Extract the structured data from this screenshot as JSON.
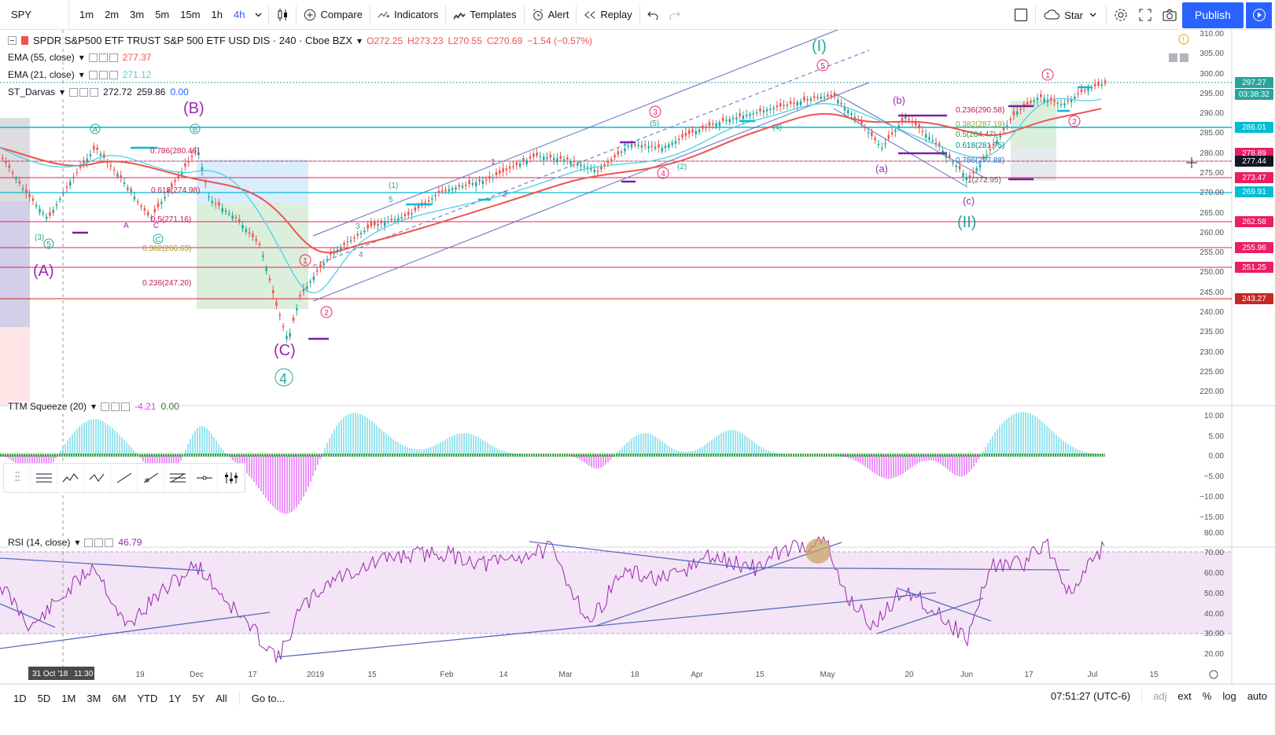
{
  "toolbar": {
    "symbol": "SPY",
    "intervals": [
      "1m",
      "2m",
      "3m",
      "5m",
      "15m",
      "1h",
      "4h"
    ],
    "active_interval": "4h",
    "compare_label": "Compare",
    "indicators_label": "Indicators",
    "templates_label": "Templates",
    "alert_label": "Alert",
    "replay_label": "Replay",
    "star_label": "Star",
    "publish_label": "Publish"
  },
  "main_legend": {
    "title": "SPDR S&P500 ETF TRUST S&P 500 ETF USD DIS · 240 · Cboe BZX",
    "open": "O272.25",
    "high": "H273.23",
    "low": "L270.55",
    "close": "C270.69",
    "change": "−1.54 (−0.57%)"
  },
  "indicators": [
    {
      "name": "EMA (55, close)",
      "value": "277.37",
      "color": "#ef5350"
    },
    {
      "name": "EMA (21, close)",
      "value": "271.12",
      "color": "#4dd0e1"
    },
    {
      "name": "ST_Darvas",
      "value1": "272.72",
      "value2": "259.86",
      "value3": "0.00"
    }
  ],
  "ttm_legend": {
    "name": "TTM Squeeze (20)",
    "value1": "-4.21",
    "value2": "0.00"
  },
  "rsi_legend": {
    "name": "RSI (14, close)",
    "value": "46.79"
  },
  "price_axis": {
    "ticks": [
      "310.00",
      "305.00",
      "300.00",
      "295.00",
      "290.00",
      "285.00",
      "280.00",
      "275.00",
      "270.00",
      "265.00",
      "260.00",
      "255.00",
      "250.00",
      "245.00",
      "240.00",
      "235.00",
      "230.00",
      "225.00",
      "220.00"
    ],
    "tags": [
      {
        "label": "297.27",
        "color": "#26a69a"
      },
      {
        "label": "03:38:32",
        "color": "#26a69a"
      },
      {
        "label": "286.01",
        "color": "#00bcd4"
      },
      {
        "label": "278.89",
        "color": "#e91e63"
      },
      {
        "label": "277.44",
        "color": "#131722"
      },
      {
        "label": "273.47",
        "color": "#e91e63"
      },
      {
        "label": "269.91",
        "color": "#00bcd4"
      },
      {
        "label": "262.58",
        "color": "#e91e63"
      },
      {
        "label": "255.96",
        "color": "#e91e63"
      },
      {
        "label": "251.25",
        "color": "#e91e63"
      },
      {
        "label": "243.27",
        "color": "#c62828"
      }
    ]
  },
  "ttm_axis": [
    "10.00",
    "5.00",
    "0.00",
    "−5.00",
    "−10.00",
    "−15.00"
  ],
  "rsi_axis": [
    "80.00",
    "70.00",
    "60.00",
    "50.00",
    "40.00",
    "30.00",
    "20.00"
  ],
  "time_axis": {
    "labels": [
      "19",
      "Dec",
      "17",
      "2019",
      "15",
      "Feb",
      "14",
      "Mar",
      "18",
      "Apr",
      "15",
      "May",
      "20",
      "Jun",
      "17",
      "Jul",
      "15"
    ],
    "cursor_date": "31 Oct '18",
    "cursor_time": "11:30"
  },
  "wave_labels": {
    "A_big": "(A)",
    "B_big": "(B)",
    "C_big": "(C)",
    "four": "4",
    "I_big": "(I)",
    "II_big": "(II)",
    "a_small": "(a)",
    "b_small": "(b)",
    "c_small": "(c)",
    "circled": [
      "1",
      "2",
      "3",
      "4",
      "5",
      "A",
      "B",
      "C",
      "5",
      "1",
      "2"
    ],
    "small": [
      "(3)",
      "(4)",
      "(5)",
      "(1)",
      "(2)",
      "3",
      "4",
      "5",
      "1",
      "2",
      "A",
      "C"
    ]
  },
  "fib_labels": [
    "0.786(280.46)",
    "0.618(274.98)",
    "0.5(271.16)",
    "0.382(266.63)",
    "0.236(247.20)",
    "0.236(290.58)",
    "0.382(287.19)",
    "0.5(284.47)",
    "0.618(281.75)",
    "0.786(277.88)",
    "1(272.95)"
  ],
  "bottom_bar": {
    "ranges": [
      "1D",
      "5D",
      "1M",
      "3M",
      "6M",
      "YTD",
      "1Y",
      "5Y",
      "All"
    ],
    "goto": "Go to...",
    "clock": "07:51:27 (UTC-6)",
    "adj": "adj",
    "ext": "ext",
    "pct": "%",
    "log": "log",
    "auto": "auto"
  },
  "colors": {
    "accent": "#2962ff",
    "ema55": "#ef5350",
    "ema21": "#4dd0e1",
    "bull": "#26a69a",
    "bear": "#ef5350",
    "magenta": "#e91e63",
    "purple": "#9c27b0",
    "rsi_band": "#f3e5f5"
  }
}
